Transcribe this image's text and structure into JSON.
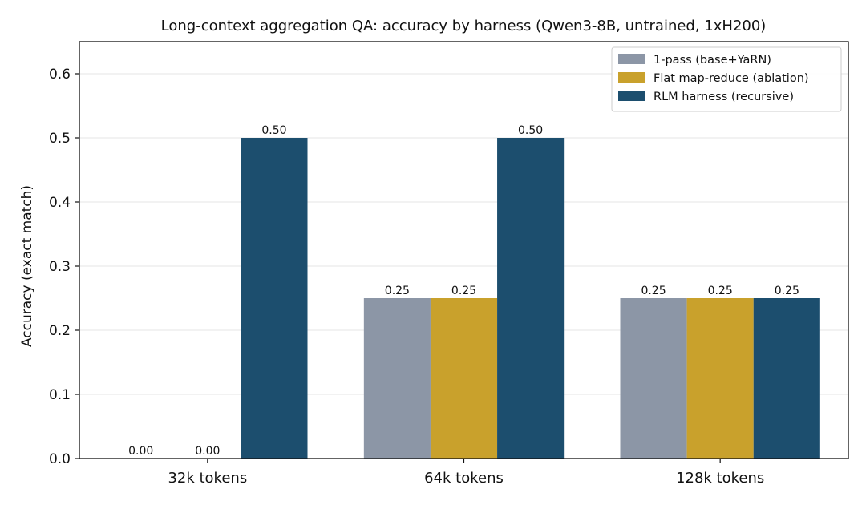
{
  "chart_data": {
    "type": "bar",
    "title": "Long-context aggregation QA: accuracy by harness (Qwen3-8B, untrained, 1xH200)",
    "xlabel": "",
    "ylabel": "Accuracy (exact match)",
    "ylim": [
      0,
      0.65
    ],
    "yticks": [
      "0.0",
      "0.1",
      "0.2",
      "0.3",
      "0.4",
      "0.5",
      "0.6"
    ],
    "ytick_values": [
      0,
      0.1,
      0.2,
      0.3,
      0.4,
      0.5,
      0.6
    ],
    "categories": [
      "32k tokens",
      "64k tokens",
      "128k tokens"
    ],
    "series": [
      {
        "name": "1-pass (base+YaRN)",
        "values": [
          0.0,
          0.25,
          0.25
        ],
        "labels": [
          "0.00",
          "0.25",
          "0.25"
        ],
        "color": "#8c96a6"
      },
      {
        "name": "Flat map-reduce (ablation)",
        "values": [
          0.0,
          0.25,
          0.25
        ],
        "labels": [
          "0.00",
          "0.25",
          "0.25"
        ],
        "color": "#c9a12c"
      },
      {
        "name": "RLM harness (recursive)",
        "values": [
          0.5,
          0.5,
          0.25
        ],
        "labels": [
          "0.50",
          "0.50",
          "0.25"
        ],
        "color": "#1c4e6e"
      }
    ],
    "grid": "horizontal",
    "legend": "top-right"
  }
}
